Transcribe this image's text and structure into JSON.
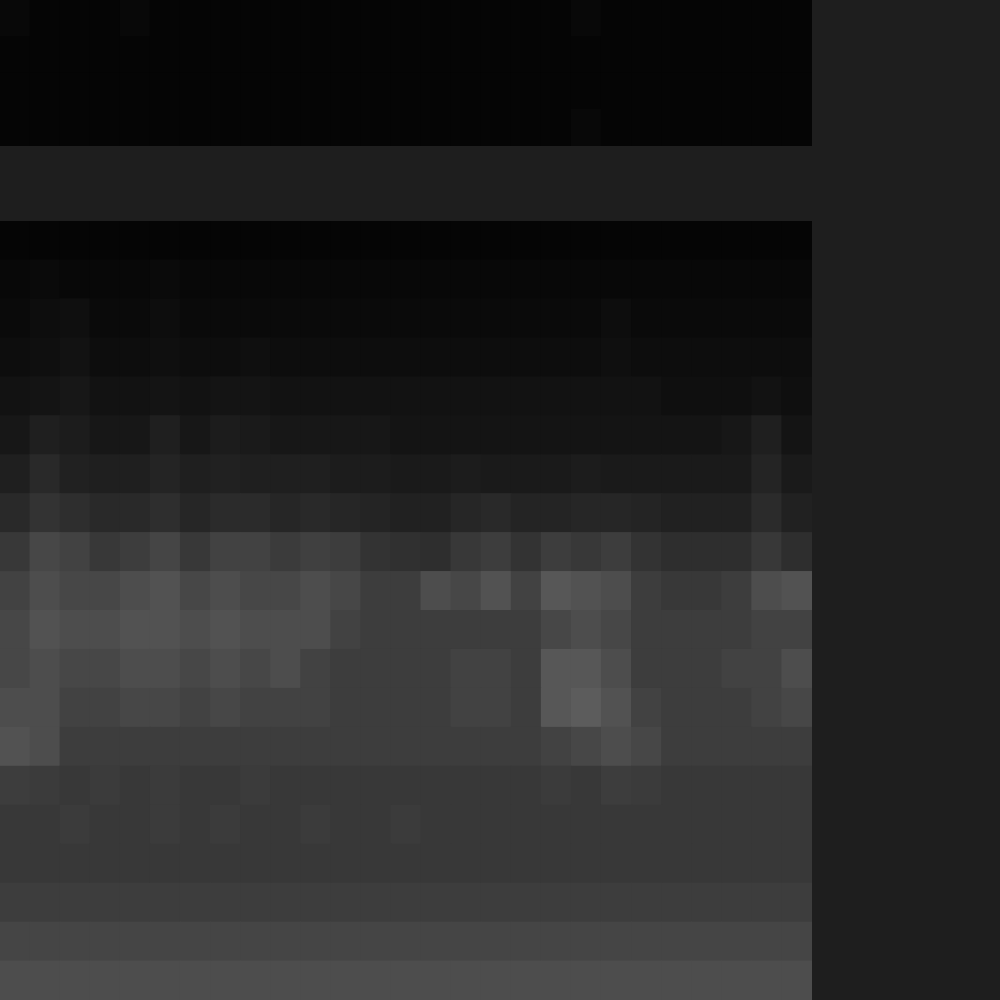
{
  "chart_data": [
    {
      "type": "heatmap",
      "color": "gray",
      "tick_labels": false,
      "zlim": [
        0,
        100
      ],
      "cells": [
        [
          3,
          2,
          2,
          2,
          3,
          2,
          2,
          2,
          2,
          2,
          2,
          2,
          2,
          2,
          2,
          2,
          2,
          2,
          2,
          3,
          2,
          2,
          2,
          2,
          2,
          2,
          2
        ],
        [
          2,
          2,
          2,
          2,
          2,
          2,
          2,
          2,
          2,
          2,
          2,
          2,
          2,
          2,
          2,
          2,
          2,
          2,
          2,
          2,
          2,
          2,
          2,
          2,
          2,
          2,
          2
        ],
        [
          2,
          2,
          2,
          2,
          2,
          2,
          2,
          2,
          2,
          2,
          2,
          2,
          2,
          2,
          2,
          2,
          2,
          2,
          2,
          2,
          2,
          2,
          2,
          2,
          2,
          2,
          2
        ],
        [
          2,
          2,
          2,
          2,
          2,
          2,
          2,
          2,
          2,
          2,
          2,
          2,
          2,
          2,
          2,
          2,
          2,
          2,
          2,
          3,
          2,
          2,
          2,
          2,
          2,
          2,
          2
        ]
      ]
    },
    {
      "type": "heatmap",
      "color": "gray",
      "tick_labels": false,
      "zlim": [
        0,
        100
      ],
      "cells": [
        [
          2,
          2,
          2,
          2,
          2,
          2,
          2,
          2,
          2,
          2,
          2,
          2,
          2,
          2,
          2,
          2,
          2,
          2,
          2,
          2,
          2,
          2,
          2,
          2,
          2,
          2,
          2
        ],
        [
          3,
          4,
          3,
          3,
          3,
          4,
          3,
          3,
          3,
          3,
          3,
          3,
          3,
          3,
          3,
          3,
          3,
          3,
          3,
          3,
          3,
          3,
          3,
          3,
          3,
          3,
          3
        ],
        [
          4,
          5,
          6,
          4,
          4,
          5,
          4,
          4,
          4,
          4,
          4,
          4,
          4,
          4,
          4,
          4,
          4,
          4,
          4,
          4,
          5,
          4,
          4,
          4,
          4,
          4,
          4
        ],
        [
          5,
          6,
          7,
          5,
          5,
          6,
          5,
          5,
          6,
          5,
          5,
          5,
          5,
          5,
          5,
          5,
          5,
          5,
          5,
          5,
          6,
          5,
          5,
          5,
          5,
          5,
          5
        ],
        [
          7,
          8,
          9,
          7,
          7,
          8,
          7,
          8,
          8,
          7,
          7,
          7,
          7,
          7,
          7,
          7,
          7,
          7,
          7,
          7,
          7,
          7,
          6,
          6,
          6,
          7,
          6
        ],
        [
          9,
          12,
          11,
          9,
          9,
          12,
          9,
          11,
          10,
          9,
          9,
          9,
          9,
          8,
          8,
          8,
          8,
          8,
          8,
          8,
          8,
          8,
          8,
          8,
          9,
          12,
          8
        ],
        [
          12,
          16,
          13,
          12,
          12,
          14,
          12,
          13,
          12,
          12,
          12,
          11,
          11,
          10,
          10,
          11,
          10,
          10,
          10,
          11,
          10,
          10,
          10,
          10,
          10,
          14,
          10
        ],
        [
          16,
          20,
          18,
          16,
          16,
          18,
          15,
          17,
          17,
          15,
          16,
          15,
          14,
          13,
          13,
          15,
          16,
          14,
          14,
          15,
          15,
          14,
          13,
          13,
          13,
          17,
          13
        ],
        [
          22,
          28,
          26,
          22,
          24,
          27,
          22,
          26,
          26,
          23,
          25,
          24,
          20,
          19,
          18,
          22,
          24,
          20,
          24,
          22,
          24,
          20,
          18,
          18,
          18,
          22,
          18
        ],
        [
          26,
          30,
          28,
          28,
          30,
          32,
          28,
          30,
          28,
          28,
          30,
          28,
          24,
          24,
          30,
          28,
          32,
          26,
          34,
          32,
          30,
          24,
          22,
          22,
          24,
          30,
          32
        ],
        [
          28,
          32,
          30,
          30,
          32,
          32,
          30,
          32,
          30,
          30,
          30,
          26,
          24,
          24,
          24,
          24,
          24,
          24,
          28,
          30,
          28,
          24,
          24,
          24,
          24,
          26,
          26
        ],
        [
          28,
          30,
          28,
          28,
          30,
          30,
          28,
          30,
          28,
          30,
          26,
          24,
          24,
          24,
          24,
          26,
          26,
          24,
          34,
          34,
          30,
          24,
          24,
          24,
          26,
          26,
          30
        ],
        [
          30,
          30,
          26,
          26,
          28,
          28,
          26,
          28,
          26,
          26,
          26,
          24,
          24,
          24,
          24,
          26,
          26,
          24,
          34,
          36,
          32,
          26,
          24,
          24,
          24,
          26,
          28
        ],
        [
          32,
          30,
          24,
          24,
          24,
          24,
          24,
          24,
          24,
          24,
          24,
          24,
          24,
          24,
          24,
          24,
          24,
          24,
          26,
          28,
          30,
          28,
          24,
          24,
          24,
          24,
          24
        ],
        [
          24,
          23,
          22,
          23,
          22,
          23,
          22,
          22,
          23,
          22,
          22,
          22,
          22,
          22,
          22,
          22,
          22,
          22,
          23,
          22,
          24,
          23,
          22,
          22,
          22,
          22,
          22
        ],
        [
          22,
          22,
          23,
          22,
          22,
          23,
          22,
          23,
          22,
          22,
          23,
          22,
          22,
          23,
          22,
          22,
          22,
          22,
          22,
          22,
          22,
          22,
          22,
          22,
          22,
          22,
          22
        ],
        [
          22,
          22,
          22,
          22,
          22,
          22,
          22,
          22,
          22,
          22,
          22,
          22,
          22,
          22,
          22,
          22,
          22,
          22,
          22,
          22,
          22,
          22,
          22,
          22,
          22,
          22,
          22
        ],
        [
          24,
          24,
          24,
          24,
          24,
          24,
          24,
          24,
          24,
          24,
          24,
          24,
          24,
          24,
          24,
          24,
          24,
          24,
          24,
          24,
          24,
          24,
          24,
          24,
          24,
          24,
          24
        ],
        [
          27,
          27,
          27,
          27,
          27,
          27,
          27,
          27,
          27,
          27,
          27,
          27,
          27,
          27,
          27,
          27,
          27,
          27,
          27,
          27,
          27,
          27,
          27,
          27,
          27,
          27,
          27
        ],
        [
          30,
          30,
          30,
          30,
          30,
          30,
          30,
          30,
          30,
          30,
          30,
          30,
          30,
          30,
          30,
          30,
          30,
          30,
          30,
          30,
          30,
          30,
          30,
          30,
          30,
          30,
          30
        ]
      ]
    }
  ]
}
